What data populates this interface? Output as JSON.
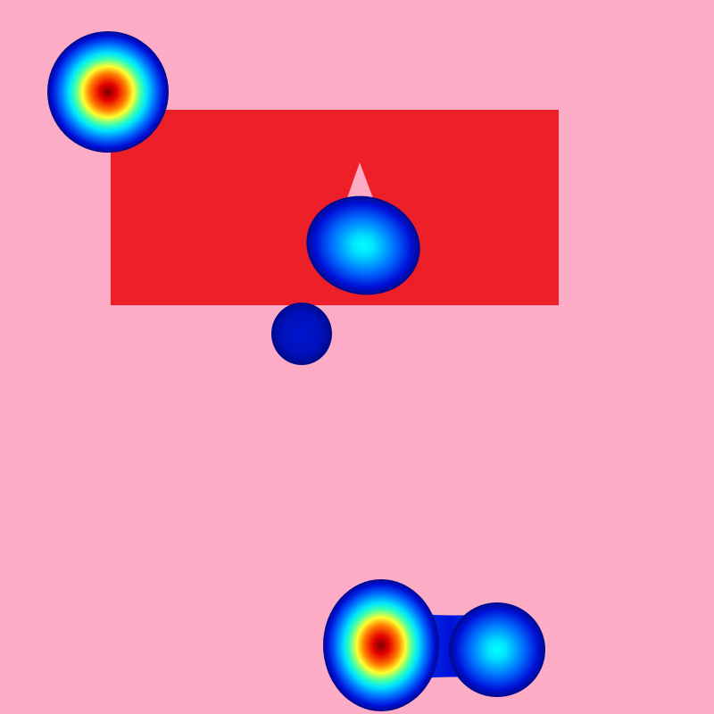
{
  "scene": {
    "background_color": "#fdacc6",
    "rectangle": {
      "fill": "#ed1f29"
    },
    "triangle": {
      "fill": "#fdacc6"
    },
    "colormap": [
      "#7a0000",
      "#e60000",
      "#ff7a00",
      "#ffff30",
      "#39ffb0",
      "#00e5ff",
      "#0070ff",
      "#0010d8",
      "#000a8a"
    ],
    "blobs": [
      {
        "name": "top-left-blob",
        "peak_intensity": 1.0
      },
      {
        "name": "center-blob",
        "peak_intensity": 0.55
      },
      {
        "name": "small-blob",
        "peak_intensity": 0.12
      },
      {
        "name": "bottom-left-lobe",
        "peak_intensity": 1.0
      },
      {
        "name": "bottom-right-lobe",
        "peak_intensity": 0.55
      }
    ]
  }
}
